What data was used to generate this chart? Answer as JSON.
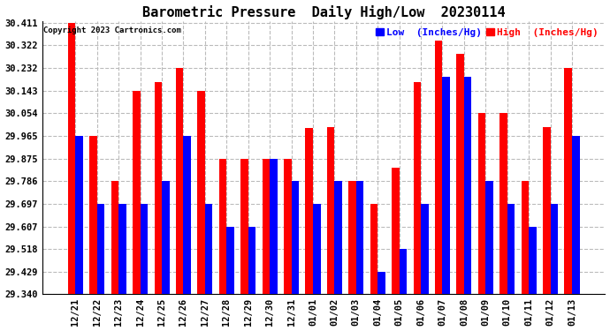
{
  "title": "Barometric Pressure  Daily High/Low  20230114",
  "copyright": "Copyright 2023 Cartronics.com",
  "legend_low": "Low  (Inches/Hg)",
  "legend_high": "High  (Inches/Hg)",
  "categories": [
    "12/21",
    "12/22",
    "12/23",
    "12/24",
    "12/25",
    "12/26",
    "12/27",
    "12/28",
    "12/29",
    "12/30",
    "12/31",
    "01/01",
    "01/02",
    "01/03",
    "01/04",
    "01/05",
    "01/06",
    "01/07",
    "01/08",
    "01/09",
    "01/10",
    "01/11",
    "01/12",
    "01/13"
  ],
  "high_values": [
    30.411,
    29.965,
    29.786,
    30.143,
    30.175,
    30.232,
    30.143,
    29.875,
    29.875,
    29.875,
    29.875,
    29.997,
    30.0,
    29.786,
    29.697,
    29.84,
    30.175,
    30.34,
    30.286,
    30.054,
    30.054,
    29.786,
    30.0,
    30.232
  ],
  "low_values": [
    29.965,
    29.697,
    29.697,
    29.697,
    29.786,
    29.965,
    29.697,
    29.607,
    29.607,
    29.875,
    29.786,
    29.697,
    29.786,
    29.786,
    29.429,
    29.518,
    29.697,
    30.197,
    30.197,
    29.786,
    29.697,
    29.607,
    29.697,
    29.965
  ],
  "ylim_min": 29.34,
  "ylim_max": 30.411,
  "yticks": [
    29.34,
    29.429,
    29.518,
    29.607,
    29.697,
    29.786,
    29.875,
    29.965,
    30.054,
    30.143,
    30.232,
    30.322,
    30.411
  ],
  "bar_color_low": "#0000ff",
  "bar_color_high": "#ff0000",
  "background_color": "#ffffff",
  "grid_color": "#bbbbbb",
  "title_fontsize": 11,
  "tick_fontsize": 7.5,
  "legend_fontsize": 8,
  "copyright_fontsize": 6.5
}
